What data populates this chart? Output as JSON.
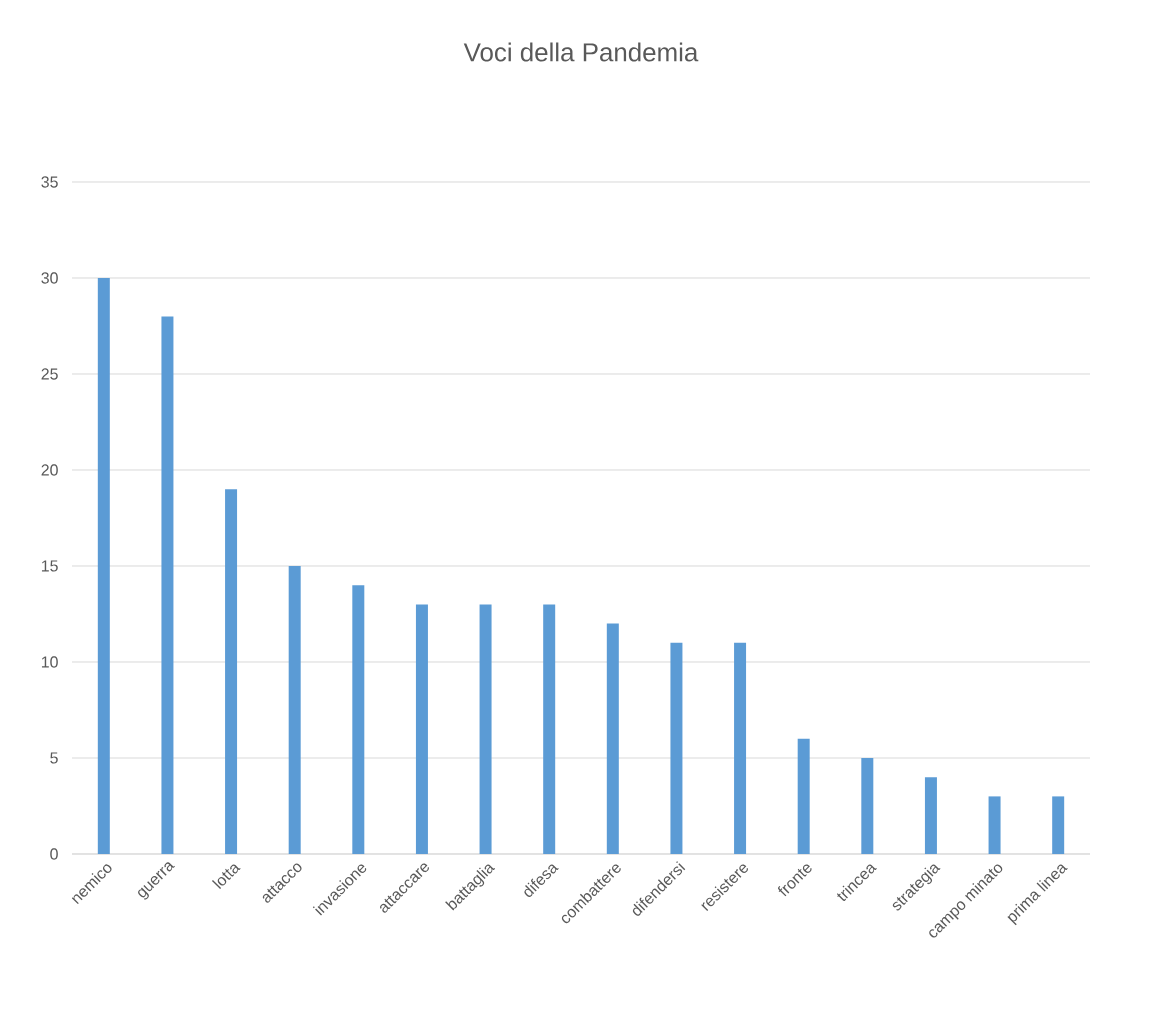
{
  "chart_data": {
    "type": "bar",
    "title": "Voci della Pandemia",
    "categories": [
      "nemico",
      "guerra",
      "lotta",
      "attacco",
      "invasione",
      "attaccare",
      "battaglia",
      "difesa",
      "combattere",
      "difendersi",
      "resistere",
      "fronte",
      "trincea",
      "strategia",
      "campo minato",
      "prima linea"
    ],
    "values": [
      30,
      28,
      19,
      15,
      14,
      13,
      13,
      13,
      12,
      11,
      11,
      6,
      5,
      4,
      3,
      3
    ],
    "color": "#5b9bd5",
    "ylim": [
      0,
      35
    ],
    "yticks": [
      0,
      5,
      10,
      15,
      20,
      25,
      30,
      35
    ],
    "grid": "y"
  }
}
